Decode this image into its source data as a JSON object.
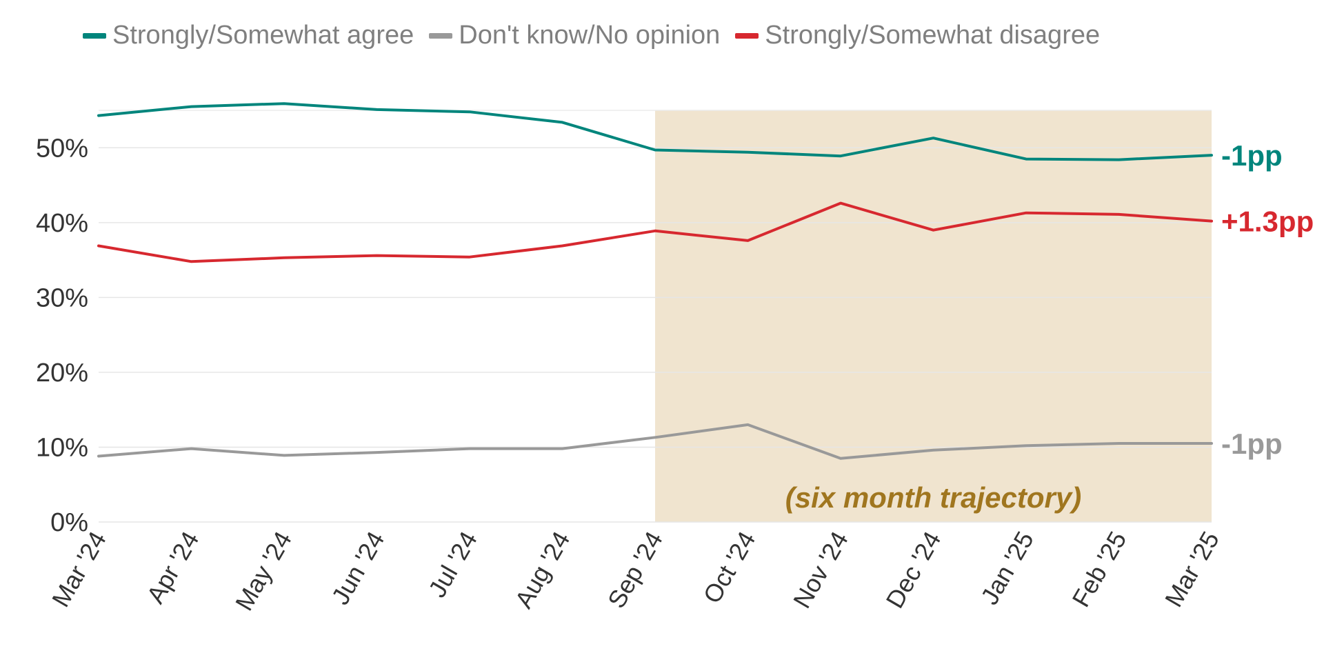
{
  "chart_data": {
    "type": "line",
    "title": "",
    "xlabel": "",
    "ylabel": "",
    "x": [
      "Mar '24",
      "Apr '24",
      "May '24",
      "Jun '24",
      "Jul '24",
      "Aug '24",
      "Sep '24",
      "Oct '24",
      "Nov '24",
      "Dec '24",
      "Jan '25",
      "Feb '25",
      "Mar '25"
    ],
    "ylim": [
      0,
      55
    ],
    "yticks": [
      "0%",
      "10%",
      "20%",
      "30%",
      "40%",
      "50%"
    ],
    "grid": true,
    "legend_position": "top",
    "series": [
      {
        "name": "Strongly/Somewhat agree",
        "color": "#00857c",
        "values": [
          54.3,
          55.5,
          55.9,
          55.1,
          54.8,
          53.4,
          49.7,
          49.4,
          48.9,
          51.3,
          48.5,
          48.4,
          49.0
        ],
        "end_label": "-1pp"
      },
      {
        "name": "Don't know/No opinion",
        "color": "#999999",
        "values": [
          8.8,
          9.8,
          8.9,
          9.3,
          9.8,
          9.8,
          11.3,
          13.0,
          8.5,
          9.6,
          10.2,
          10.5,
          10.5
        ],
        "end_label": "-1pp"
      },
      {
        "name": "Strongly/Somewhat disagree",
        "color": "#d7282f",
        "values": [
          36.9,
          34.8,
          35.3,
          35.6,
          35.4,
          36.9,
          38.9,
          37.6,
          42.6,
          39.0,
          41.3,
          41.1,
          40.2
        ],
        "end_label": "+1.3pp"
      }
    ],
    "annotations": [
      {
        "text": "(six month trajectory)",
        "shaded_range": [
          "Sep '24",
          "Mar '25"
        ],
        "color": "#f0e4cf"
      }
    ]
  }
}
